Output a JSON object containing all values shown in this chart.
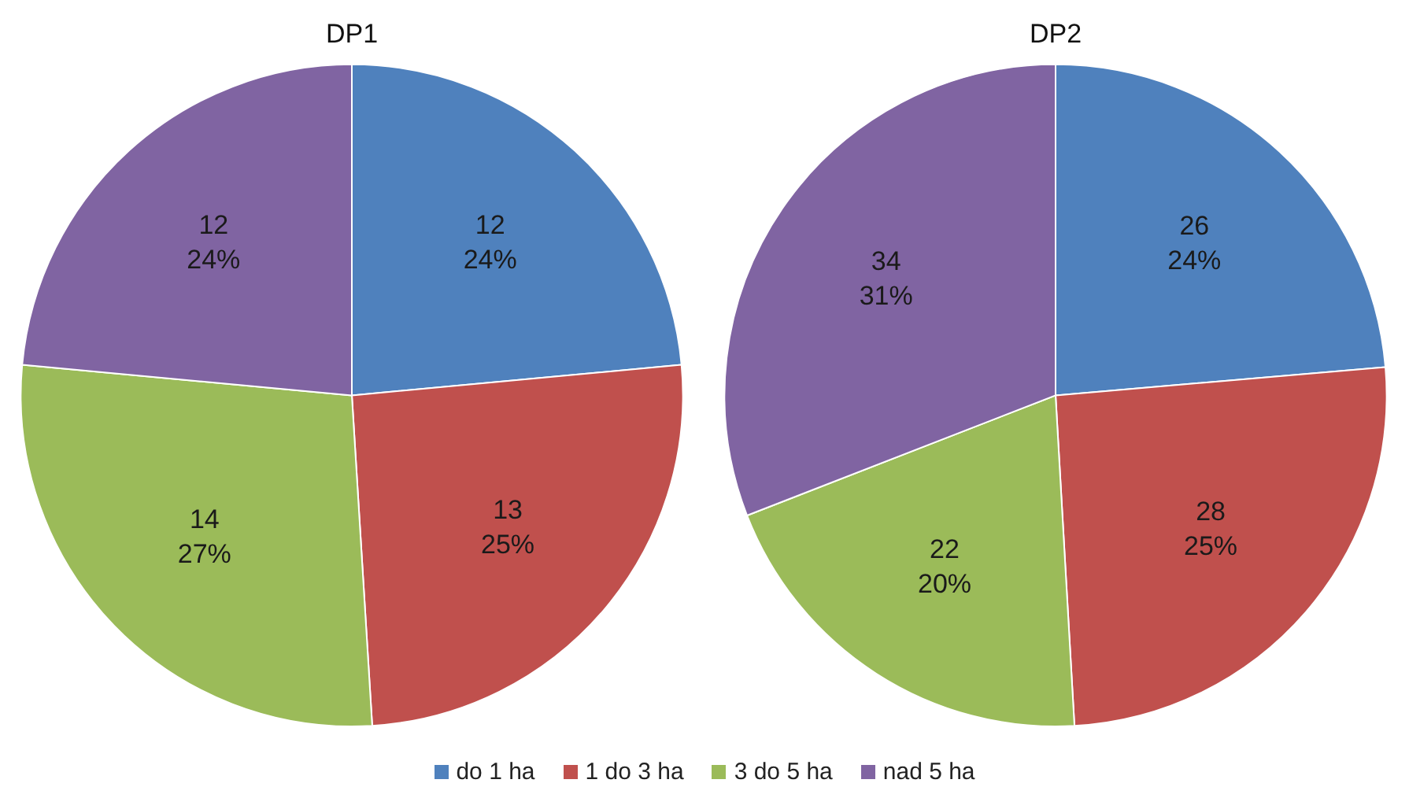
{
  "chart_data": [
    {
      "type": "pie",
      "title": "DP1",
      "categories": [
        "do 1 ha",
        "1 do 3 ha",
        "3 do 5 ha",
        "nad 5 ha"
      ],
      "values": [
        12,
        13,
        14,
        12
      ],
      "colors": [
        "#4f81bd",
        "#c0504d",
        "#9bbb59",
        "#8064a2"
      ],
      "value_labels": [
        "12\n24%",
        "13\n25%",
        "14\n27%",
        "12\n24%"
      ],
      "legend": "bottom"
    },
    {
      "type": "pie",
      "title": "DP2",
      "categories": [
        null,
        null,
        null,
        null
      ],
      "values": [
        26,
        28,
        22,
        34
      ],
      "colors": [
        "#4f81bd",
        "#c0504d",
        "#9bbb59",
        "#8064a2"
      ],
      "value_labels": [
        "26\n24%",
        "28\n25%",
        "22\n20%",
        "34\n31%"
      ]
    }
  ]
}
